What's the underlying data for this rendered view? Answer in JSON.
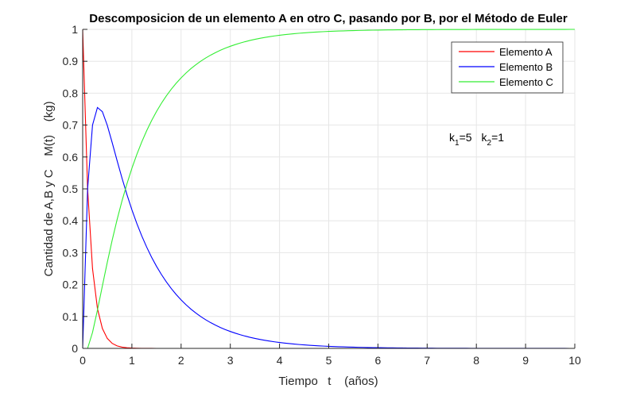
{
  "chart_data": {
    "type": "line",
    "title": "Descomposicion de un elemento A en otro C, pasando por B, por el Método de Euler",
    "xlabel": "Tiempo   t    (años)",
    "ylabel": "Cantidad de A,B y C    M(t)    (kg)",
    "xlim": [
      0,
      10
    ],
    "ylim": [
      0,
      1
    ],
    "xticks": [
      0,
      1,
      2,
      3,
      4,
      5,
      6,
      7,
      8,
      9,
      10
    ],
    "yticks": [
      0,
      0.1,
      0.2,
      0.3,
      0.4,
      0.5,
      0.6,
      0.7,
      0.8,
      0.9,
      1
    ],
    "xtick_labels": [
      "0",
      "1",
      "2",
      "3",
      "4",
      "5",
      "6",
      "7",
      "8",
      "9",
      "10"
    ],
    "ytick_labels": [
      "0",
      "0.1",
      "0.2",
      "0.3",
      "0.4",
      "0.5",
      "0.6",
      "0.7",
      "0.8",
      "0.9",
      "1"
    ],
    "grid": true,
    "legend_position": "northeast",
    "annotation": {
      "text": "k1=5   k2=1",
      "k1": 5,
      "k2": 1,
      "x": 7.3,
      "y": 0.66
    },
    "step": 0.1,
    "t_start": 0,
    "series": [
      {
        "name": "Elemento A",
        "color": "#ff0000",
        "values": [
          1,
          0.5,
          0.25,
          0.125,
          0.0625,
          0.03125,
          0.015625,
          0.0078125,
          0.0039063,
          0.0019531,
          0.0009766,
          0.0004883,
          0.0002441,
          0.0001221,
          6.1e-05,
          3.05e-05,
          1.53e-05,
          7.6e-06,
          3.8e-06,
          1.9e-06,
          1e-06,
          0,
          0,
          0,
          0,
          0,
          0,
          0,
          0,
          0,
          0,
          0,
          0,
          0,
          0,
          0,
          0,
          0,
          0,
          0,
          0,
          0,
          0,
          0,
          0,
          0,
          0,
          0,
          0,
          0,
          0,
          0,
          0,
          0,
          0,
          0,
          0,
          0,
          0,
          0,
          0,
          0,
          0,
          0,
          0,
          0,
          0,
          0,
          0,
          0,
          0,
          0,
          0,
          0,
          0,
          0,
          0,
          0,
          0,
          0,
          0,
          0,
          0,
          0,
          0,
          0,
          0,
          0,
          0,
          0,
          0,
          0,
          0,
          0,
          0,
          0,
          0,
          0,
          0,
          0,
          0
        ]
      },
      {
        "name": "Elemento B",
        "color": "#0000ff",
        "values": [
          0,
          0.5,
          0.7,
          0.755,
          0.742,
          0.69905,
          0.64477,
          0.588106,
          0.533201,
          0.481834,
          0.434627,
          0.391653,
          0.352731,
          0.31758,
          0.285883,
          0.257325,
          0.231608,
          0.208448,
          0.187604,
          0.168844,
          0.15196,
          0.136764,
          0.123088,
          0.110779,
          0.099701,
          0.089731,
          0.080758,
          0.072682,
          0.065414,
          0.058873,
          0.052986,
          0.047687,
          0.042918,
          0.038626,
          0.034763,
          0.031287,
          0.028158,
          0.025342,
          0.022808,
          0.020527,
          0.018474,
          0.016627,
          0.014964,
          0.013468,
          0.012121,
          0.010909,
          0.009818,
          0.008836,
          0.007952,
          0.007157,
          0.006441,
          0.005797,
          0.005217,
          0.004696,
          0.004226,
          0.003803,
          0.003423,
          0.003081,
          0.002773,
          0.002496,
          0.002246,
          0.002021,
          0.001819,
          0.001637,
          0.001474,
          0.001326,
          0.001194,
          0.001074,
          0.000967,
          0.00087,
          0.000783,
          0.000705,
          0.000634,
          0.000571,
          0.000514,
          0.000462,
          0.000416,
          0.000375,
          0.000337,
          0.000303,
          0.000273,
          0.000246,
          0.000221,
          0.000199,
          0.000179,
          0.000161,
          0.000145,
          0.000131,
          0.000118,
          0.000106,
          9.5e-05,
          8.6e-05,
          7.7e-05,
          6.9e-05,
          6.3e-05,
          5.6e-05,
          5.1e-05,
          4.6e-05,
          4.1e-05,
          3.7e-05,
          3.3e-05
        ]
      },
      {
        "name": "Elemento C",
        "color": "#33ee33",
        "values": [
          0,
          0,
          0.05,
          0.12,
          0.1955,
          0.2697,
          0.33961,
          0.404082,
          0.462893,
          0.516213,
          0.564396,
          0.607859,
          0.647025,
          0.682298,
          0.714056,
          0.742645,
          0.768377,
          0.791544,
          0.812392,
          0.831154,
          0.84804,
          0.863236,
          0.876912,
          0.889221,
          0.900299,
          0.910269,
          0.919242,
          0.927318,
          0.934586,
          0.941127,
          0.947014,
          0.952313,
          0.957082,
          0.961374,
          0.965237,
          0.968713,
          0.971842,
          0.974658,
          0.977192,
          0.979473,
          0.981526,
          0.983373,
          0.985036,
          0.986532,
          0.987879,
          0.989091,
          0.990182,
          0.991164,
          0.992048,
          0.992843,
          0.993559,
          0.994203,
          0.994783,
          0.995304,
          0.995774,
          0.996197,
          0.996577,
          0.996919,
          0.997227,
          0.997504,
          0.997754,
          0.997979,
          0.998181,
          0.998363,
          0.998526,
          0.998674,
          0.998806,
          0.998926,
          0.999033,
          0.99913,
          0.999217,
          0.999295,
          0.999366,
          0.999429,
          0.999486,
          0.999538,
          0.999584,
          0.999625,
          0.999663,
          0.999697,
          0.999727,
          0.999754,
          0.999779,
          0.999801,
          0.999821,
          0.999839,
          0.999855,
          0.999869,
          0.999882,
          0.999894,
          0.999905,
          0.999914,
          0.999923,
          0.999931,
          0.999937,
          0.999944,
          0.999949,
          0.999954,
          0.999959,
          0.999963,
          0.999967
        ]
      }
    ]
  },
  "legend": {
    "items": [
      {
        "label": "Elemento A",
        "color": "#ff0000"
      },
      {
        "label": "Elemento B",
        "color": "#0000ff"
      },
      {
        "label": "Elemento C",
        "color": "#33ee33"
      }
    ]
  },
  "annotation": {
    "k1_label": "k",
    "k1_sub": "1",
    "k1_value": "=5",
    "k2_label": "k",
    "k2_sub": "2",
    "k2_value": "=1"
  }
}
